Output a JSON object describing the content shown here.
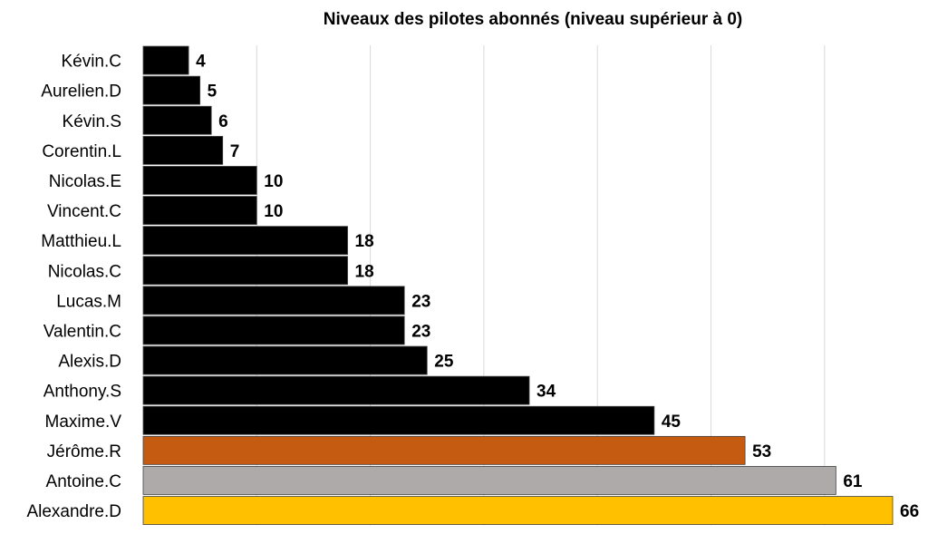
{
  "chart_data": {
    "type": "bar",
    "orientation": "horizontal",
    "title": "Niveaux des pilotes abonnés (niveau supérieur à 0)",
    "xlabel": "",
    "ylabel": "",
    "xlim": [
      0,
      66
    ],
    "grid": true,
    "legend": "none",
    "data_labels": true,
    "categories": [
      "Kévin.C",
      "Aurelien.D",
      "Kévin.S",
      "Corentin.L",
      "Nicolas.E",
      "Vincent.C",
      "Matthieu.L",
      "Nicolas.C",
      "Lucas.M",
      "Valentin.C",
      "Alexis.D",
      "Anthony.S",
      "Maxime.V",
      "Jérôme.R",
      "Antoine.C",
      "Alexandre.D"
    ],
    "values": [
      4,
      5,
      6,
      7,
      10,
      10,
      18,
      18,
      23,
      23,
      25,
      34,
      45,
      53,
      61,
      66
    ],
    "bar_colors": [
      "#000000",
      "#000000",
      "#000000",
      "#000000",
      "#000000",
      "#000000",
      "#000000",
      "#000000",
      "#000000",
      "#000000",
      "#000000",
      "#000000",
      "#000000",
      "#c55a11",
      "#aeaaaa",
      "#ffc000"
    ]
  }
}
